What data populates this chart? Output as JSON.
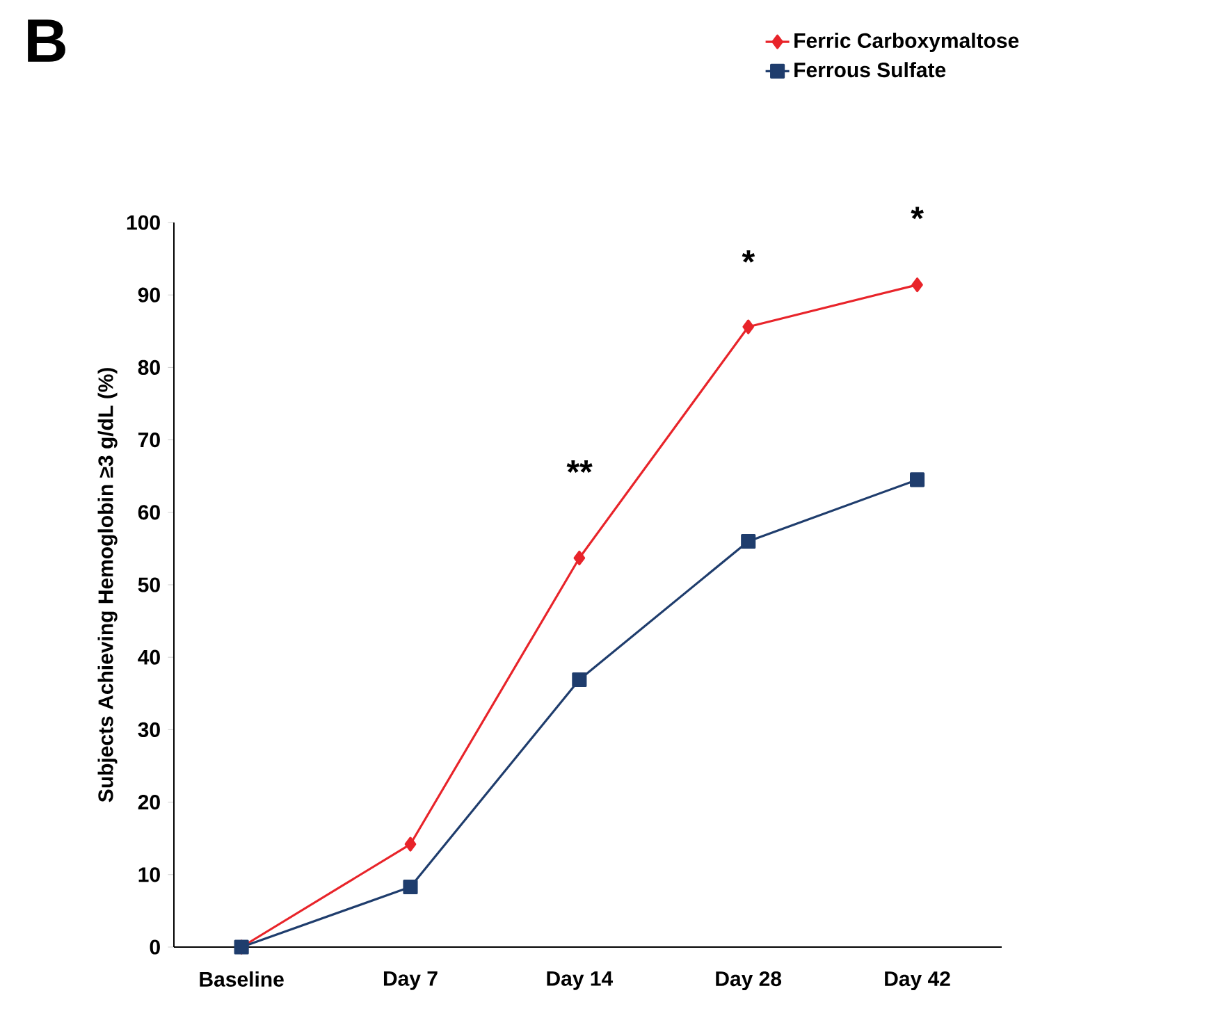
{
  "chart_data": {
    "type": "line",
    "ylabel": "Subjects Achieving Hemoglobin ≥3 g/dL (%)",
    "categories": [
      "Baseline",
      "Day 7",
      "Day 14",
      "Day 28",
      "Day 42"
    ],
    "series": [
      {
        "name": "Ferric Carboxymaltose",
        "color": "#e8242a",
        "marker": "diamond",
        "values": [
          0,
          14.2,
          53.7,
          85.6,
          91.4
        ]
      },
      {
        "name": "Ferrous Sulfate",
        "color": "#1f3d6d",
        "marker": "square",
        "values": [
          0,
          8.3,
          36.9,
          56.0,
          64.5
        ]
      }
    ],
    "ylim": [
      0,
      100
    ],
    "yticks": [
      0,
      10,
      20,
      30,
      40,
      50,
      60,
      70,
      80,
      90,
      100
    ],
    "legend": "top right",
    "line_style": "solid",
    "annotations": [
      "B",
      "**",
      "*",
      "*"
    ]
  }
}
